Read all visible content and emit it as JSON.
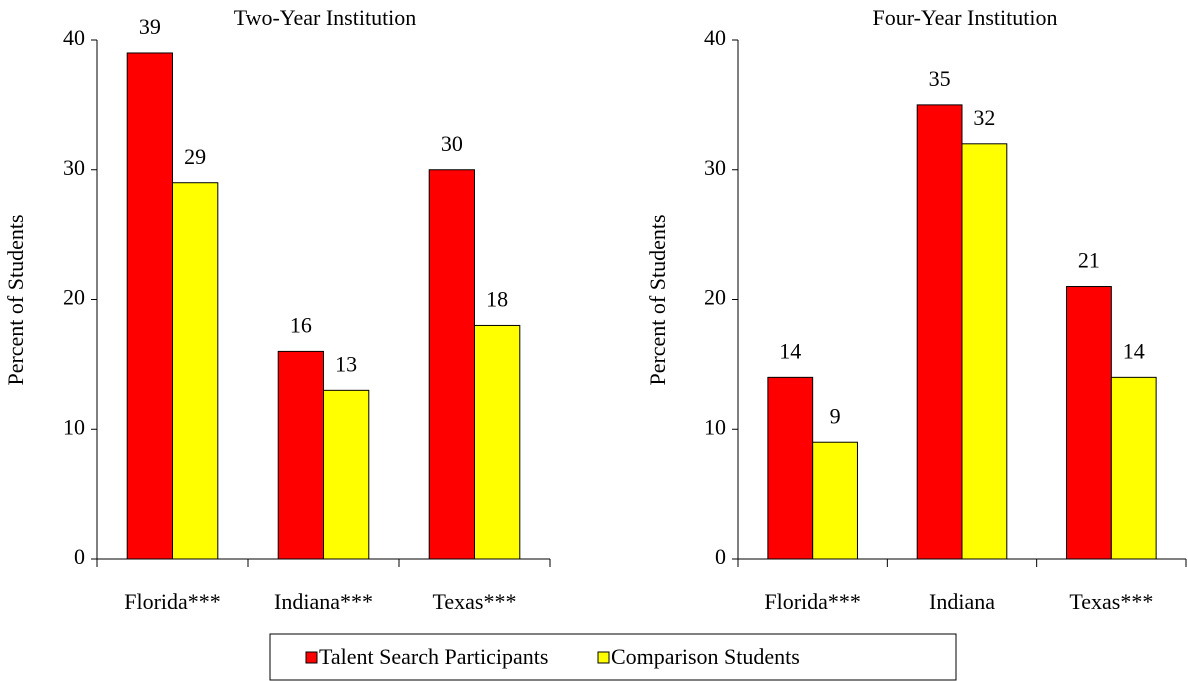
{
  "chart_data": [
    {
      "type": "bar",
      "title": "Two-Year Institution",
      "y_label": "Percent of Students",
      "categories": [
        "Florida***",
        "Indiana***",
        "Texas***"
      ],
      "series": [
        {
          "name": "Talent Search Participants",
          "color": "#ff0000",
          "values": [
            39,
            16,
            30
          ]
        },
        {
          "name": "Comparison Students",
          "color": "#ffff00",
          "values": [
            29,
            13,
            18
          ]
        }
      ],
      "ylim": [
        0,
        40
      ],
      "yticks": [
        0,
        10,
        20,
        30,
        40
      ]
    },
    {
      "type": "bar",
      "title": "Four-Year Institution",
      "y_label": "Percent of Students",
      "categories": [
        "Florida***",
        "Indiana",
        "Texas***"
      ],
      "series": [
        {
          "color": "#ff0000",
          "values": [
            14,
            35,
            21
          ]
        },
        {
          "color": "#ffff00",
          "values": [
            9,
            32,
            14
          ]
        }
      ],
      "ylim": [
        0,
        40
      ],
      "yticks": [
        0,
        10,
        20,
        30,
        40
      ]
    }
  ]
}
